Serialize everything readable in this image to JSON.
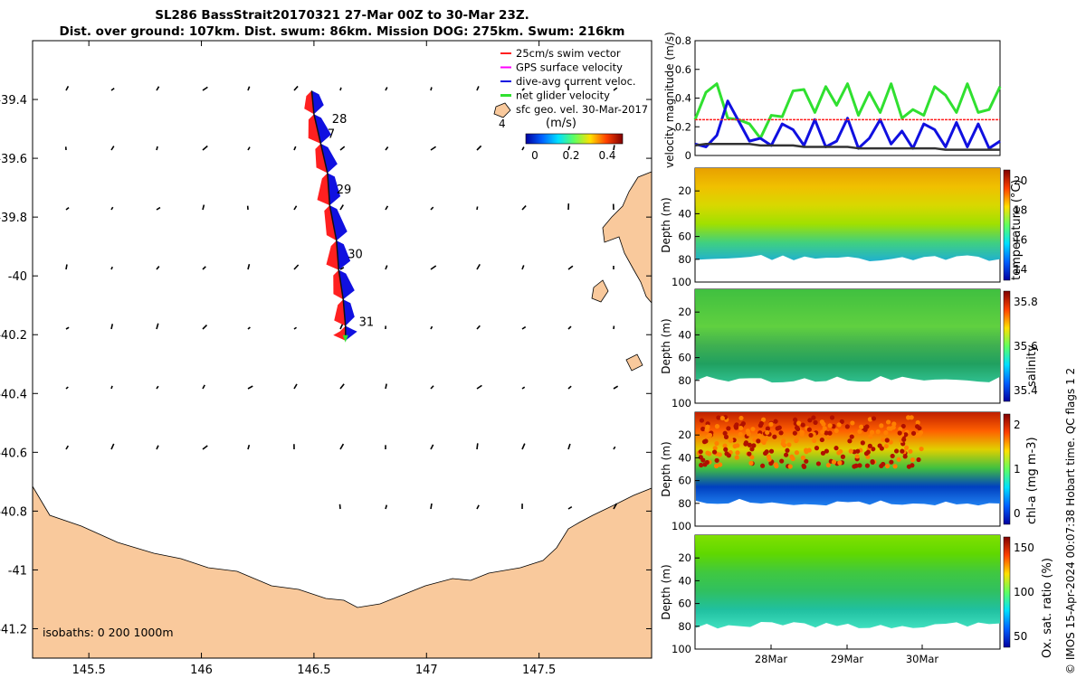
{
  "title_line1": "SL286 BassStrait20170321 27-Mar 00Z to 30-Mar 23Z.",
  "title_line2": "Dist. over ground: 107km. Dist. swum: 86km. Mission DOG: 275km. Swum: 216km",
  "credit": "© IMOS 15-Apr-2024 00:07:38 Hobart time. QC flags 1 2",
  "colors": {
    "land": "#f9c99c",
    "swim": "#ff2020",
    "gps": "#ff00ff",
    "current": "#1010e0",
    "net": "#30e030",
    "speedline": "#333333"
  },
  "chart_data": [
    {
      "type": "map",
      "x_ticks": [
        "145.5",
        "146",
        "146.5",
        "147",
        "147.5"
      ],
      "y_ticks": [
        "-39.4",
        "-39.6",
        "-39.8",
        "-40",
        "-40.2",
        "-40.4",
        "-40.6",
        "-40.8",
        "-41",
        "-41.2"
      ],
      "xlim": [
        145.25,
        148.0
      ],
      "ylim": [
        -41.3,
        -39.2
      ],
      "legend": {
        "placement": "top-right",
        "items": [
          "25cm/s swim vector",
          "GPS surface velocity",
          "dive-avg current veloc.",
          "net glider velocity",
          "sfc geo. vel. 30-Mar-2017"
        ],
        "colorbar_unit": "(m/s)",
        "colorbar_ticks": [
          "0",
          "0.2",
          "0.4"
        ]
      },
      "day_labels": [
        {
          "text": "28",
          "lon": 146.58,
          "lat": -39.48
        },
        {
          "text": "7",
          "lon": 146.56,
          "lat": -39.53
        },
        {
          "text": "29",
          "lon": 146.6,
          "lat": -39.72
        },
        {
          "text": "30",
          "lon": 146.65,
          "lat": -39.94
        },
        {
          "text": "31",
          "lon": 146.7,
          "lat": -40.17
        }
      ],
      "inset_label": "4",
      "isobaths_label": "isobaths: 0   200  1000m",
      "track": [
        [
          146.49,
          -39.37
        ],
        [
          146.5,
          -39.45
        ],
        [
          146.53,
          -39.55
        ],
        [
          146.56,
          -39.65
        ],
        [
          146.57,
          -39.76
        ],
        [
          146.6,
          -39.88
        ],
        [
          146.61,
          -39.98
        ],
        [
          146.63,
          -40.08
        ],
        [
          146.64,
          -40.17
        ],
        [
          146.64,
          -40.22
        ]
      ]
    },
    {
      "type": "line",
      "ylabel": "velocity magnitude (m/s)",
      "ylim": [
        0,
        0.8
      ],
      "y_ticks": [
        "0",
        "0.2",
        "0.4",
        "0.6",
        "0.8"
      ],
      "series": [
        {
          "color": "green",
          "values": [
            0.25,
            0.44,
            0.5,
            0.26,
            0.25,
            0.22,
            0.12,
            0.28,
            0.27,
            0.45,
            0.46,
            0.3,
            0.48,
            0.35,
            0.5,
            0.28,
            0.44,
            0.3,
            0.5,
            0.26,
            0.32,
            0.28,
            0.48,
            0.42,
            0.3,
            0.5,
            0.3,
            0.32,
            0.48
          ]
        },
        {
          "color": "blue",
          "values": [
            0.08,
            0.06,
            0.14,
            0.38,
            0.24,
            0.1,
            0.12,
            0.07,
            0.22,
            0.18,
            0.07,
            0.25,
            0.06,
            0.1,
            0.26,
            0.05,
            0.12,
            0.25,
            0.08,
            0.17,
            0.05,
            0.22,
            0.18,
            0.06,
            0.23,
            0.06,
            0.22,
            0.05,
            0.1
          ]
        },
        {
          "color": "black",
          "values": [
            0.07,
            0.08,
            0.08,
            0.08,
            0.08,
            0.08,
            0.07,
            0.07,
            0.07,
            0.07,
            0.06,
            0.06,
            0.06,
            0.06,
            0.06,
            0.05,
            0.05,
            0.05,
            0.05,
            0.05,
            0.05,
            0.05,
            0.05,
            0.04,
            0.04,
            0.04,
            0.04,
            0.04,
            0.04
          ]
        },
        {
          "color": "red",
          "constant": 0.25
        }
      ]
    },
    {
      "type": "heatmap",
      "ylabel": "Depth (m)",
      "cbar_label": "temperature (°C)",
      "cbar_ticks": [
        "14",
        "16",
        "18",
        "20"
      ],
      "y_ticks": [
        "20",
        "40",
        "60",
        "80",
        "100"
      ],
      "ylim": [
        0,
        100
      ]
    },
    {
      "type": "heatmap",
      "ylabel": "Depth (m)",
      "cbar_label": "salinity",
      "cbar_ticks": [
        "35.4",
        "35.6",
        "35.8"
      ],
      "y_ticks": [
        "20",
        "40",
        "60",
        "80",
        "100"
      ],
      "ylim": [
        0,
        100
      ]
    },
    {
      "type": "heatmap",
      "ylabel": "Depth (m)",
      "cbar_label": "chl-a (mg m-3)",
      "cbar_ticks": [
        "0",
        "1",
        "2"
      ],
      "y_ticks": [
        "20",
        "40",
        "60",
        "80",
        "100"
      ],
      "ylim": [
        0,
        100
      ]
    },
    {
      "type": "heatmap",
      "ylabel": "Depth (m)",
      "cbar_label": "Ox. sat. ratio (%)",
      "cbar_ticks": [
        "50",
        "100",
        "150"
      ],
      "y_ticks": [
        "20",
        "40",
        "60",
        "80",
        "100"
      ],
      "ylim": [
        0,
        100
      ],
      "x_ticks": [
        "28Mar",
        "29Mar",
        "30Mar"
      ]
    }
  ]
}
